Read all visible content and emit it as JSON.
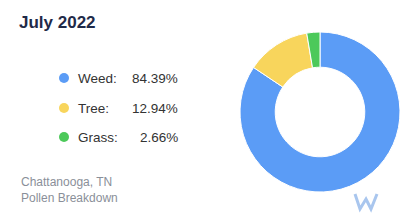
{
  "chart_data": {
    "type": "pie",
    "title": "July 2022",
    "categories": [
      "Weed:",
      "Tree:",
      "Grass:"
    ],
    "values": [
      84.39,
      12.94,
      2.66
    ],
    "value_labels": [
      "84.39%",
      "12.94%",
      "2.66%"
    ],
    "colors": [
      "#5b9cf6",
      "#f8d55c",
      "#4cc95a"
    ],
    "annotations": [
      "Chattanooga, TN",
      "Pollen Breakdown"
    ],
    "legend": "left"
  }
}
